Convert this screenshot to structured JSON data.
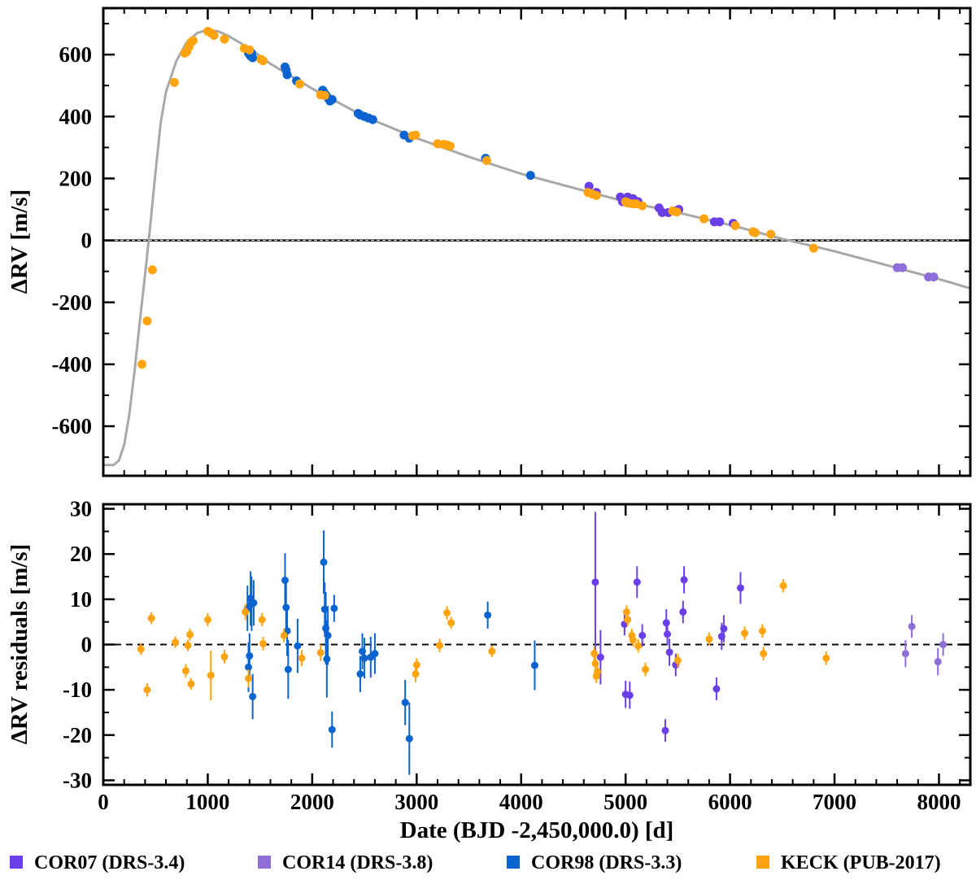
{
  "chart_data": [
    {
      "type": "scatter",
      "panel": "top",
      "ylabel": "ΔRV [m/s]",
      "xlim": [
        0,
        8300
      ],
      "ylim": [
        -760,
        750
      ],
      "yticks": [
        -600,
        -400,
        -200,
        0,
        200,
        400,
        600
      ],
      "ytick_labels": [
        "-600",
        "-400",
        "-200",
        "0",
        "200",
        "400",
        "600"
      ],
      "xticks": [
        0,
        1000,
        2000,
        3000,
        4000,
        5000,
        6000,
        7000,
        8000
      ],
      "model_curve": {
        "x": [
          0,
          100,
          150,
          200,
          250,
          300,
          350,
          400,
          450,
          500,
          550,
          600,
          700,
          800,
          900,
          1000,
          1100,
          1200,
          1400,
          1600,
          2000,
          2500,
          3000,
          3500,
          4000,
          4500,
          5000,
          5500,
          6000,
          6500,
          7000,
          7500,
          8000,
          8300
        ],
        "y": [
          -725,
          -725,
          -710,
          -660,
          -560,
          -420,
          -260,
          -110,
          50,
          220,
          380,
          480,
          580,
          640,
          670,
          680,
          675,
          660,
          620,
          570,
          490,
          400,
          330,
          270,
          215,
          170,
          125,
          90,
          50,
          5,
          -35,
          -80,
          -125,
          -155
        ],
        "color": "#a8a8a8"
      },
      "zero_line": 0,
      "series": [
        {
          "name": "COR07 (DRS-3.4)",
          "color": "#6a3ee8",
          "x": [
            4650,
            4720,
            4950,
            4970,
            5000,
            5020,
            5070,
            5120,
            5320,
            5350,
            5410,
            5470,
            5510,
            5850,
            5900,
            6030
          ],
          "y": [
            175,
            155,
            140,
            125,
            125,
            140,
            135,
            125,
            105,
            90,
            90,
            95,
            100,
            60,
            60,
            55
          ]
        },
        {
          "name": "COR14 (DRS-3.8)",
          "color": "#8f6ed8",
          "x": [
            7600,
            7650,
            7900,
            7950
          ],
          "y": [
            -88,
            -88,
            -118,
            -118
          ]
        },
        {
          "name": "COR98 (DRS-3.3)",
          "color": "#0a64d0",
          "x": [
            1380,
            1390,
            1400,
            1410,
            1420,
            1430,
            1740,
            1750,
            1760,
            1850,
            2100,
            2110,
            2130,
            2150,
            2170,
            2190,
            2440,
            2460,
            2500,
            2540,
            2580,
            2880,
            2930,
            3660,
            4090
          ],
          "y": [
            615,
            605,
            600,
            595,
            605,
            590,
            560,
            550,
            535,
            515,
            485,
            480,
            470,
            460,
            450,
            455,
            410,
            405,
            400,
            395,
            390,
            340,
            330,
            265,
            210
          ]
        },
        {
          "name": "KECK (PUB-2017)",
          "color": "#ffa40e",
          "x": [
            370,
            420,
            470,
            680,
            780,
            800,
            820,
            840,
            860,
            1000,
            1030,
            1060,
            1160,
            1350,
            1400,
            1510,
            1530,
            1880,
            2080,
            2120,
            2960,
            2990,
            3200,
            3260,
            3290,
            3320,
            3670,
            4640,
            4680,
            4720,
            5000,
            5010,
            5030,
            5070,
            5100,
            5160,
            5450,
            5490,
            5750,
            6050,
            6220,
            6240,
            6390,
            6800
          ],
          "y": [
            -400,
            -260,
            -95,
            510,
            605,
            610,
            625,
            640,
            645,
            675,
            670,
            662,
            650,
            620,
            615,
            585,
            580,
            505,
            470,
            468,
            338,
            340,
            312,
            310,
            308,
            305,
            258,
            155,
            150,
            145,
            125,
            122,
            120,
            118,
            118,
            112,
            95,
            92,
            70,
            48,
            28,
            25,
            20,
            -25
          ]
        }
      ]
    },
    {
      "type": "scatter",
      "panel": "bottom",
      "xlabel": "Date (BJD -2,450,000.0) [d]",
      "ylabel": "ΔRV residuals [m/s]",
      "xlim": [
        0,
        8300
      ],
      "ylim": [
        -31,
        31
      ],
      "yticks": [
        -30,
        -20,
        -10,
        0,
        10,
        20,
        30
      ],
      "ytick_labels": [
        "-30",
        "-20",
        "-10",
        "0",
        "10",
        "20",
        "30"
      ],
      "xticks": [
        0,
        1000,
        2000,
        3000,
        4000,
        5000,
        6000,
        7000,
        8000
      ],
      "xtick_labels": [
        "0",
        "1000",
        "2000",
        "3000",
        "4000",
        "5000",
        "6000",
        "7000",
        "8000"
      ],
      "zero_line": 0,
      "series": [
        {
          "name": "COR07 (DRS-3.4)",
          "color": "#6a3ee8",
          "x": [
            4710,
            4760,
            4990,
            5000,
            5040,
            5110,
            5160,
            5380,
            5390,
            5400,
            5420,
            5480,
            5550,
            5560,
            5870,
            5920,
            5940,
            6100
          ],
          "y": [
            13.8,
            -2.8,
            4.5,
            -11.0,
            -11.2,
            13.8,
            2.0,
            -19.0,
            4.8,
            2.3,
            -1.7,
            -4.5,
            7.2,
            14.3,
            -9.8,
            1.8,
            3.5,
            12.5
          ],
          "err": [
            15.5,
            6.0,
            2.5,
            3.0,
            3.0,
            3.5,
            2.5,
            2.5,
            3.0,
            2.5,
            3.0,
            2.5,
            2.5,
            3.0,
            2.5,
            3.0,
            3.0,
            3.5
          ]
        },
        {
          "name": "COR14 (DRS-3.8)",
          "color": "#8f6ed8",
          "x": [
            7680,
            7740,
            7990,
            8040
          ],
          "y": [
            -2.0,
            4.0,
            -3.8,
            0.0
          ],
          "err": [
            3.0,
            2.5,
            3.0,
            2.5
          ]
        },
        {
          "name": "COR98 (DRS-3.3)",
          "color": "#0a64d0",
          "x": [
            1380,
            1390,
            1400,
            1410,
            1420,
            1430,
            1440,
            1740,
            1750,
            1760,
            1770,
            1860,
            2110,
            2120,
            2130,
            2140,
            2150,
            2190,
            2210,
            2460,
            2480,
            2500,
            2560,
            2600,
            2890,
            2930,
            3680,
            4130
          ],
          "y": [
            8.0,
            -5.0,
            -2.5,
            10.2,
            9.0,
            -11.5,
            9.2,
            14.2,
            8.2,
            3.0,
            -5.5,
            -0.3,
            18.2,
            7.8,
            3.6,
            -3.2,
            2.0,
            -18.8,
            8.0,
            -6.5,
            -1.5,
            -3.0,
            -2.8,
            -2.0,
            -12.8,
            -20.8,
            6.5,
            -4.6
          ],
          "err": [
            5.0,
            5.5,
            5.0,
            6.0,
            6.0,
            5.0,
            5.0,
            6.0,
            6.5,
            5.5,
            6.5,
            6.0,
            7.0,
            6.0,
            8.0,
            8.5,
            6.5,
            4.0,
            3.0,
            4.0,
            4.0,
            4.5,
            4.5,
            4.5,
            5.0,
            8.0,
            3.0,
            5.5
          ]
        },
        {
          "name": "KECK (PUB-2017)",
          "color": "#ffa40e",
          "x": [
            360,
            420,
            460,
            690,
            790,
            810,
            830,
            840,
            1000,
            1030,
            1160,
            1360,
            1390,
            1520,
            1530,
            1730,
            1900,
            2080,
            2990,
            3000,
            3220,
            3290,
            3330,
            3720,
            4700,
            4710,
            4720,
            4730,
            5010,
            5020,
            5060,
            5070,
            5120,
            5190,
            5500,
            5800,
            6140,
            6310,
            6320,
            6510,
            6920
          ],
          "y": [
            -1.0,
            -10.0,
            5.8,
            0.5,
            -5.8,
            -0.2,
            2.2,
            -8.7,
            5.5,
            -6.8,
            -2.7,
            7.2,
            -7.5,
            5.5,
            0.2,
            2.0,
            -3.0,
            -1.8,
            -6.5,
            -4.5,
            -0.2,
            7.0,
            4.8,
            -1.5,
            -2.0,
            -4.2,
            -7.0,
            -6.0,
            7.2,
            5.5,
            2.0,
            1.0,
            -0.3,
            -5.5,
            -3.5,
            1.2,
            2.5,
            3.0,
            -2.0,
            13.0,
            -3.0
          ],
          "err": [
            1.3,
            1.5,
            1.3,
            1.3,
            1.5,
            1.3,
            1.3,
            1.3,
            1.5,
            5.5,
            1.5,
            1.8,
            2.0,
            1.5,
            1.5,
            1.5,
            1.8,
            1.8,
            1.8,
            1.5,
            1.5,
            1.5,
            1.3,
            1.3,
            1.5,
            1.8,
            1.5,
            1.5,
            1.5,
            1.5,
            1.5,
            1.5,
            1.5,
            1.5,
            1.5,
            1.5,
            1.5,
            1.5,
            1.5,
            1.5,
            1.5
          ]
        }
      ]
    }
  ],
  "legend": [
    {
      "label": "COR07 (DRS-3.4)",
      "color": "#6a3ee8"
    },
    {
      "label": "COR14 (DRS-3.8)",
      "color": "#8f6ed8"
    },
    {
      "label": "COR98 (DRS-3.3)",
      "color": "#0a64d0"
    },
    {
      "label": "KECK (PUB-2017)",
      "color": "#ffa40e"
    }
  ]
}
